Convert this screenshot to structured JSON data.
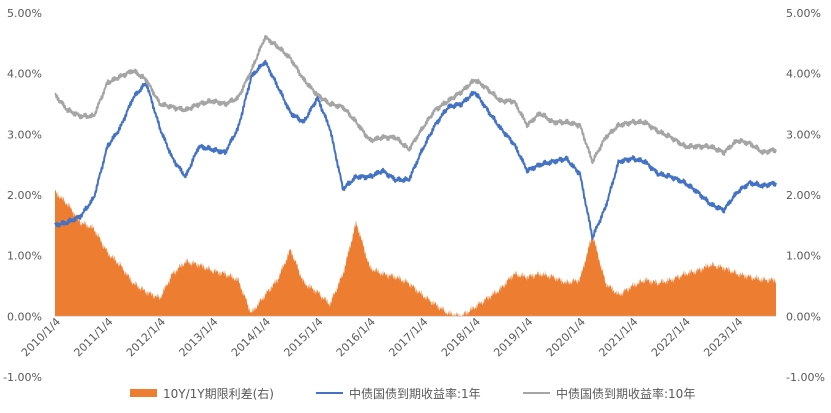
{
  "chart_data": {
    "type": "line",
    "title": "",
    "xlabel": "",
    "ylabel": "",
    "ylim_left": [
      -0.01,
      0.05
    ],
    "ylim_right": [
      -0.01,
      0.05
    ],
    "y_ticks_left": [
      "-1.00%",
      "0.00%",
      "1.00%",
      "2.00%",
      "3.00%",
      "4.00%",
      "5.00%"
    ],
    "y_ticks_right": [
      "-1.00%",
      "0.00%",
      "1.00%",
      "2.00%",
      "3.00%",
      "4.00%",
      "5.00%"
    ],
    "x_ticks": [
      "2010/1/4",
      "2011/1/4",
      "2012/1/4",
      "2013/1/4",
      "2014/1/4",
      "2015/1/4",
      "2016/1/4",
      "2017/1/4",
      "2018/1/4",
      "2019/1/4",
      "2020/1/4",
      "2021/1/4",
      "2022/1/4",
      "2023/1/4"
    ],
    "x_range": [
      "2010-01-04",
      "2023-09-30"
    ],
    "grid": false,
    "legend_position": "bottom",
    "colors": {
      "spread": "#ED7D31",
      "y1": "#4472C4",
      "y10": "#A5A5A5",
      "axis_text": "#595959",
      "axis_line": "#D9D9D9"
    },
    "series": [
      {
        "name": "10Y/1Y期限利差(右)",
        "type": "area",
        "axis": "right",
        "points": [
          [
            "2010-01-04",
            2.05
          ],
          [
            "2010-04-01",
            1.85
          ],
          [
            "2010-07-01",
            1.55
          ],
          [
            "2010-10-01",
            1.45
          ],
          [
            "2011-01-04",
            1.05
          ],
          [
            "2011-04-01",
            0.85
          ],
          [
            "2011-07-01",
            0.55
          ],
          [
            "2011-10-01",
            0.4
          ],
          [
            "2012-01-04",
            0.3
          ],
          [
            "2012-04-01",
            0.7
          ],
          [
            "2012-07-01",
            0.9
          ],
          [
            "2012-10-01",
            0.85
          ],
          [
            "2013-01-04",
            0.75
          ],
          [
            "2013-04-01",
            0.7
          ],
          [
            "2013-07-01",
            0.6
          ],
          [
            "2013-10-01",
            0.05
          ],
          [
            "2014-01-04",
            0.35
          ],
          [
            "2014-04-01",
            0.6
          ],
          [
            "2014-07-01",
            1.1
          ],
          [
            "2014-10-01",
            0.55
          ],
          [
            "2015-01-04",
            0.4
          ],
          [
            "2015-04-01",
            0.2
          ],
          [
            "2015-07-01",
            0.7
          ],
          [
            "2015-10-01",
            1.55
          ],
          [
            "2016-01-04",
            0.8
          ],
          [
            "2016-04-01",
            0.7
          ],
          [
            "2016-07-01",
            0.65
          ],
          [
            "2016-10-01",
            0.55
          ],
          [
            "2017-01-04",
            0.35
          ],
          [
            "2017-04-01",
            0.2
          ],
          [
            "2017-07-01",
            0.05
          ],
          [
            "2017-10-01",
            0.0
          ],
          [
            "2018-01-04",
            0.15
          ],
          [
            "2018-04-01",
            0.3
          ],
          [
            "2018-07-01",
            0.45
          ],
          [
            "2018-10-01",
            0.7
          ],
          [
            "2019-01-04",
            0.65
          ],
          [
            "2019-04-01",
            0.7
          ],
          [
            "2019-07-01",
            0.65
          ],
          [
            "2019-10-01",
            0.55
          ],
          [
            "2020-01-04",
            0.6
          ],
          [
            "2020-04-01",
            1.35
          ],
          [
            "2020-07-01",
            0.55
          ],
          [
            "2020-10-01",
            0.35
          ],
          [
            "2021-01-04",
            0.5
          ],
          [
            "2021-04-01",
            0.6
          ],
          [
            "2021-07-01",
            0.55
          ],
          [
            "2021-10-01",
            0.6
          ],
          [
            "2022-01-04",
            0.7
          ],
          [
            "2022-04-01",
            0.75
          ],
          [
            "2022-07-01",
            0.85
          ],
          [
            "2022-10-01",
            0.8
          ],
          [
            "2023-01-04",
            0.7
          ],
          [
            "2023-04-01",
            0.65
          ],
          [
            "2023-07-01",
            0.6
          ],
          [
            "2023-09-30",
            0.6
          ]
        ]
      },
      {
        "name": "中债国债到期收益率:1年",
        "type": "line",
        "axis": "left",
        "points": [
          [
            "2010-01-04",
            1.5
          ],
          [
            "2010-04-01",
            1.55
          ],
          [
            "2010-07-01",
            1.65
          ],
          [
            "2010-10-01",
            1.95
          ],
          [
            "2011-01-04",
            2.8
          ],
          [
            "2011-04-01",
            3.1
          ],
          [
            "2011-07-01",
            3.6
          ],
          [
            "2011-10-01",
            3.85
          ],
          [
            "2012-01-04",
            3.1
          ],
          [
            "2012-04-01",
            2.6
          ],
          [
            "2012-07-01",
            2.3
          ],
          [
            "2012-10-01",
            2.8
          ],
          [
            "2013-01-04",
            2.75
          ],
          [
            "2013-04-01",
            2.7
          ],
          [
            "2013-07-01",
            3.1
          ],
          [
            "2013-10-01",
            3.95
          ],
          [
            "2014-01-04",
            4.2
          ],
          [
            "2014-04-01",
            3.8
          ],
          [
            "2014-07-01",
            3.35
          ],
          [
            "2014-10-01",
            3.2
          ],
          [
            "2015-01-04",
            3.6
          ],
          [
            "2015-04-01",
            3.1
          ],
          [
            "2015-07-01",
            2.1
          ],
          [
            "2015-10-01",
            2.3
          ],
          [
            "2016-01-04",
            2.3
          ],
          [
            "2016-04-01",
            2.4
          ],
          [
            "2016-07-01",
            2.25
          ],
          [
            "2016-10-01",
            2.25
          ],
          [
            "2017-01-04",
            2.75
          ],
          [
            "2017-04-01",
            3.15
          ],
          [
            "2017-07-01",
            3.45
          ],
          [
            "2017-10-01",
            3.5
          ],
          [
            "2018-01-04",
            3.7
          ],
          [
            "2018-04-01",
            3.4
          ],
          [
            "2018-07-01",
            3.1
          ],
          [
            "2018-10-01",
            2.85
          ],
          [
            "2019-01-04",
            2.4
          ],
          [
            "2019-04-01",
            2.5
          ],
          [
            "2019-07-01",
            2.55
          ],
          [
            "2019-10-01",
            2.6
          ],
          [
            "2020-01-04",
            2.35
          ],
          [
            "2020-04-01",
            1.3
          ],
          [
            "2020-07-01",
            1.8
          ],
          [
            "2020-10-01",
            2.55
          ],
          [
            "2021-01-04",
            2.6
          ],
          [
            "2021-04-01",
            2.55
          ],
          [
            "2021-07-01",
            2.35
          ],
          [
            "2021-10-01",
            2.3
          ],
          [
            "2022-01-04",
            2.2
          ],
          [
            "2022-04-01",
            2.05
          ],
          [
            "2022-07-01",
            1.85
          ],
          [
            "2022-10-01",
            1.75
          ],
          [
            "2023-01-04",
            2.05
          ],
          [
            "2023-04-01",
            2.2
          ],
          [
            "2023-07-01",
            2.15
          ],
          [
            "2023-09-30",
            2.2
          ]
        ]
      },
      {
        "name": "中债国债到期收益率:10年",
        "type": "line",
        "axis": "left",
        "points": [
          [
            "2010-01-04",
            3.65
          ],
          [
            "2010-04-01",
            3.4
          ],
          [
            "2010-07-01",
            3.3
          ],
          [
            "2010-10-01",
            3.3
          ],
          [
            "2011-01-04",
            3.85
          ],
          [
            "2011-04-01",
            3.95
          ],
          [
            "2011-07-01",
            4.05
          ],
          [
            "2011-10-01",
            3.9
          ],
          [
            "2012-01-04",
            3.5
          ],
          [
            "2012-04-01",
            3.45
          ],
          [
            "2012-07-01",
            3.4
          ],
          [
            "2012-10-01",
            3.5
          ],
          [
            "2013-01-04",
            3.55
          ],
          [
            "2013-04-01",
            3.5
          ],
          [
            "2013-07-01",
            3.6
          ],
          [
            "2013-10-01",
            4.05
          ],
          [
            "2014-01-04",
            4.6
          ],
          [
            "2014-04-01",
            4.45
          ],
          [
            "2014-07-01",
            4.25
          ],
          [
            "2014-10-01",
            3.9
          ],
          [
            "2015-01-04",
            3.65
          ],
          [
            "2015-04-01",
            3.5
          ],
          [
            "2015-07-01",
            3.45
          ],
          [
            "2015-10-01",
            3.2
          ],
          [
            "2016-01-04",
            2.9
          ],
          [
            "2016-04-01",
            2.95
          ],
          [
            "2016-07-01",
            2.95
          ],
          [
            "2016-10-01",
            2.75
          ],
          [
            "2017-01-04",
            3.1
          ],
          [
            "2017-04-01",
            3.4
          ],
          [
            "2017-07-01",
            3.55
          ],
          [
            "2017-10-01",
            3.7
          ],
          [
            "2018-01-04",
            3.9
          ],
          [
            "2018-04-01",
            3.75
          ],
          [
            "2018-07-01",
            3.55
          ],
          [
            "2018-10-01",
            3.55
          ],
          [
            "2019-01-04",
            3.15
          ],
          [
            "2019-04-01",
            3.35
          ],
          [
            "2019-07-01",
            3.2
          ],
          [
            "2019-10-01",
            3.2
          ],
          [
            "2020-01-04",
            3.15
          ],
          [
            "2020-04-01",
            2.55
          ],
          [
            "2020-07-01",
            2.95
          ],
          [
            "2020-10-01",
            3.15
          ],
          [
            "2021-01-04",
            3.2
          ],
          [
            "2021-04-01",
            3.2
          ],
          [
            "2021-07-01",
            3.05
          ],
          [
            "2021-10-01",
            2.95
          ],
          [
            "2022-01-04",
            2.8
          ],
          [
            "2022-04-01",
            2.8
          ],
          [
            "2022-07-01",
            2.8
          ],
          [
            "2022-10-01",
            2.7
          ],
          [
            "2023-01-04",
            2.9
          ],
          [
            "2023-04-01",
            2.85
          ],
          [
            "2023-07-01",
            2.7
          ],
          [
            "2023-09-30",
            2.75
          ]
        ]
      }
    ]
  }
}
